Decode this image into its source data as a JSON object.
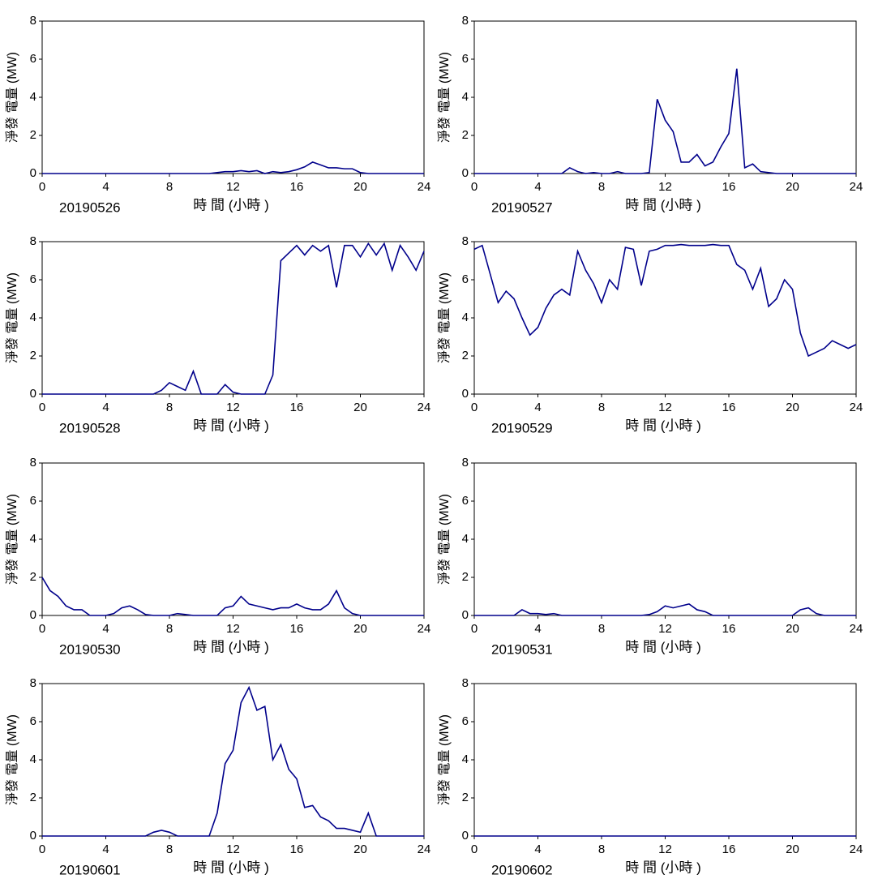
{
  "chart_data": [
    {
      "type": "line",
      "date_label": "20190526",
      "x_label": "時 間 (小時 )",
      "y_label": "淨發 電量 (MW)",
      "color": "#00008b",
      "xlim": [
        0,
        24
      ],
      "ylim": [
        0,
        8
      ],
      "xticks": [
        0,
        4,
        8,
        12,
        16,
        20,
        24
      ],
      "yticks": [
        0,
        2,
        4,
        6,
        8
      ],
      "x": [
        0,
        0.5,
        1,
        1.5,
        2,
        2.5,
        3,
        3.5,
        4,
        4.5,
        5,
        5.5,
        6,
        6.5,
        7,
        7.5,
        8,
        8.5,
        9,
        9.5,
        10,
        10.5,
        11,
        11.5,
        12,
        12.5,
        13,
        13.5,
        14,
        14.5,
        15,
        15.5,
        16,
        16.5,
        17,
        17.5,
        18,
        18.5,
        19,
        19.5,
        20,
        20.5,
        21,
        21.5,
        22,
        22.5,
        23,
        23.5,
        24
      ],
      "values": [
        0,
        0,
        0,
        0,
        0,
        0,
        0,
        0,
        0,
        0,
        0,
        0,
        0,
        0,
        0,
        0,
        0,
        0,
        0,
        0,
        0,
        0,
        0.05,
        0.1,
        0.1,
        0.15,
        0.1,
        0.15,
        0,
        0.1,
        0.05,
        0.1,
        0.2,
        0.35,
        0.6,
        0.45,
        0.3,
        0.3,
        0.25,
        0.25,
        0.05,
        0,
        0,
        0,
        0,
        0,
        0,
        0,
        0
      ]
    },
    {
      "type": "line",
      "date_label": "20190527",
      "x_label": "時 間 (小時 )",
      "y_label": "淨發 電量 (MW)",
      "color": "#00008b",
      "xlim": [
        0,
        24
      ],
      "ylim": [
        0,
        8
      ],
      "xticks": [
        0,
        4,
        8,
        12,
        16,
        20,
        24
      ],
      "yticks": [
        0,
        2,
        4,
        6,
        8
      ],
      "x": [
        0,
        0.5,
        1,
        1.5,
        2,
        2.5,
        3,
        3.5,
        4,
        4.5,
        5,
        5.5,
        6,
        6.5,
        7,
        7.5,
        8,
        8.5,
        9,
        9.5,
        10,
        10.5,
        11,
        11.5,
        12,
        12.5,
        13,
        13.5,
        14,
        14.5,
        15,
        15.5,
        16,
        16.5,
        17,
        17.5,
        18,
        18.5,
        19,
        19.5,
        20,
        20.5,
        21,
        21.5,
        22,
        22.5,
        23,
        23.5,
        24
      ],
      "values": [
        0,
        0,
        0,
        0,
        0,
        0,
        0,
        0,
        0,
        0,
        0,
        0,
        0.3,
        0.1,
        0,
        0.05,
        0,
        0,
        0.1,
        0,
        0,
        0,
        0.05,
        3.9,
        2.8,
        2.2,
        0.6,
        0.6,
        1.0,
        0.4,
        0.6,
        1.4,
        2.1,
        5.5,
        0.3,
        0.5,
        0.1,
        0.05,
        0,
        0,
        0,
        0,
        0,
        0,
        0,
        0,
        0,
        0,
        0
      ]
    },
    {
      "type": "line",
      "date_label": "20190528",
      "x_label": "時 間 (小時 )",
      "y_label": "淨發 電量 (MW)",
      "color": "#00008b",
      "xlim": [
        0,
        24
      ],
      "ylim": [
        0,
        8
      ],
      "xticks": [
        0,
        4,
        8,
        12,
        16,
        20,
        24
      ],
      "yticks": [
        0,
        2,
        4,
        6,
        8
      ],
      "x": [
        0,
        0.5,
        1,
        1.5,
        2,
        2.5,
        3,
        3.5,
        4,
        4.5,
        5,
        5.5,
        6,
        6.5,
        7,
        7.5,
        8,
        8.5,
        9,
        9.5,
        10,
        10.5,
        11,
        11.5,
        12,
        12.5,
        13,
        13.5,
        14,
        14.5,
        15,
        15.5,
        16,
        16.5,
        17,
        17.5,
        18,
        18.5,
        19,
        19.5,
        20,
        20.5,
        21,
        21.5,
        22,
        22.5,
        23,
        23.5,
        24
      ],
      "values": [
        0,
        0,
        0,
        0,
        0,
        0,
        0,
        0,
        0,
        0,
        0,
        0,
        0,
        0,
        0,
        0.2,
        0.6,
        0.4,
        0.2,
        1.2,
        0,
        0,
        0,
        0.5,
        0.1,
        0,
        0,
        0,
        0,
        1.0,
        7.0,
        7.4,
        7.8,
        7.3,
        7.8,
        7.5,
        7.8,
        5.6,
        7.8,
        7.8,
        7.2,
        7.9,
        7.3,
        7.9,
        6.5,
        7.8,
        7.2,
        6.5,
        7.5
      ]
    },
    {
      "type": "line",
      "date_label": "20190529",
      "x_label": "時 間 (小時 )",
      "y_label": "淨發 電量 (MW)",
      "color": "#00008b",
      "xlim": [
        0,
        24
      ],
      "ylim": [
        0,
        8
      ],
      "xticks": [
        0,
        4,
        8,
        12,
        16,
        20,
        24
      ],
      "yticks": [
        0,
        2,
        4,
        6,
        8
      ],
      "x": [
        0,
        0.5,
        1,
        1.5,
        2,
        2.5,
        3,
        3.5,
        4,
        4.5,
        5,
        5.5,
        6,
        6.5,
        7,
        7.5,
        8,
        8.5,
        9,
        9.5,
        10,
        10.5,
        11,
        11.5,
        12,
        12.5,
        13,
        13.5,
        14,
        14.5,
        15,
        15.5,
        16,
        16.5,
        17,
        17.5,
        18,
        18.5,
        19,
        19.5,
        20,
        20.5,
        21,
        21.5,
        22,
        22.5,
        23,
        23.5,
        24
      ],
      "values": [
        7.6,
        7.8,
        6.3,
        4.8,
        5.4,
        5.0,
        4.0,
        3.1,
        3.5,
        4.5,
        5.2,
        5.5,
        5.2,
        7.5,
        6.5,
        5.8,
        4.8,
        6.0,
        5.5,
        7.7,
        7.6,
        5.7,
        7.5,
        7.6,
        7.8,
        7.8,
        7.85,
        7.8,
        7.8,
        7.8,
        7.85,
        7.8,
        7.8,
        6.8,
        6.5,
        5.5,
        6.6,
        4.6,
        5.0,
        6.0,
        5.5,
        3.2,
        2.0,
        2.2,
        2.4,
        2.8,
        2.6,
        2.4,
        2.6
      ]
    },
    {
      "type": "line",
      "date_label": "20190530",
      "x_label": "時 間 (小時 )",
      "y_label": "淨發 電量 (MW)",
      "color": "#00008b",
      "xlim": [
        0,
        24
      ],
      "ylim": [
        0,
        8
      ],
      "xticks": [
        0,
        4,
        8,
        12,
        16,
        20,
        24
      ],
      "yticks": [
        0,
        2,
        4,
        6,
        8
      ],
      "x": [
        0,
        0.5,
        1,
        1.5,
        2,
        2.5,
        3,
        3.5,
        4,
        4.5,
        5,
        5.5,
        6,
        6.5,
        7,
        7.5,
        8,
        8.5,
        9,
        9.5,
        10,
        10.5,
        11,
        11.5,
        12,
        12.5,
        13,
        13.5,
        14,
        14.5,
        15,
        15.5,
        16,
        16.5,
        17,
        17.5,
        18,
        18.5,
        19,
        19.5,
        20,
        20.5,
        21,
        21.5,
        22,
        22.5,
        23,
        23.5,
        24
      ],
      "values": [
        2.0,
        1.3,
        1.0,
        0.5,
        0.3,
        0.3,
        0,
        0,
        0,
        0.1,
        0.4,
        0.5,
        0.3,
        0.05,
        0,
        0,
        0,
        0.1,
        0.05,
        0,
        0,
        0,
        0,
        0.4,
        0.5,
        1.0,
        0.6,
        0.5,
        0.4,
        0.3,
        0.4,
        0.4,
        0.6,
        0.4,
        0.3,
        0.3,
        0.6,
        1.3,
        0.4,
        0.1,
        0,
        0,
        0,
        0,
        0,
        0,
        0,
        0,
        0
      ]
    },
    {
      "type": "line",
      "date_label": "20190531",
      "x_label": "時 間 (小時 )",
      "y_label": "淨發 電量 (MW)",
      "color": "#00008b",
      "xlim": [
        0,
        24
      ],
      "ylim": [
        0,
        8
      ],
      "xticks": [
        0,
        4,
        8,
        12,
        16,
        20,
        24
      ],
      "yticks": [
        0,
        2,
        4,
        6,
        8
      ],
      "x": [
        0,
        0.5,
        1,
        1.5,
        2,
        2.5,
        3,
        3.5,
        4,
        4.5,
        5,
        5.5,
        6,
        6.5,
        7,
        7.5,
        8,
        8.5,
        9,
        9.5,
        10,
        10.5,
        11,
        11.5,
        12,
        12.5,
        13,
        13.5,
        14,
        14.5,
        15,
        15.5,
        16,
        16.5,
        17,
        17.5,
        18,
        18.5,
        19,
        19.5,
        20,
        20.5,
        21,
        21.5,
        22,
        22.5,
        23,
        23.5,
        24
      ],
      "values": [
        0,
        0,
        0,
        0,
        0,
        0,
        0.3,
        0.1,
        0.1,
        0.05,
        0.1,
        0,
        0,
        0,
        0,
        0,
        0,
        0,
        0,
        0,
        0,
        0,
        0.05,
        0.2,
        0.5,
        0.4,
        0.5,
        0.6,
        0.3,
        0.2,
        0,
        0,
        0,
        0,
        0,
        0,
        0,
        0,
        0,
        0,
        0,
        0.3,
        0.4,
        0.1,
        0,
        0,
        0,
        0,
        0
      ]
    },
    {
      "type": "line",
      "date_label": "20190601",
      "x_label": "時 間 (小時 )",
      "y_label": "淨發 電量 (MW)",
      "color": "#00008b",
      "xlim": [
        0,
        24
      ],
      "ylim": [
        0,
        8
      ],
      "xticks": [
        0,
        4,
        8,
        12,
        16,
        20,
        24
      ],
      "yticks": [
        0,
        2,
        4,
        6,
        8
      ],
      "x": [
        0,
        0.5,
        1,
        1.5,
        2,
        2.5,
        3,
        3.5,
        4,
        4.5,
        5,
        5.5,
        6,
        6.5,
        7,
        7.5,
        8,
        8.5,
        9,
        9.5,
        10,
        10.5,
        11,
        11.5,
        12,
        12.5,
        13,
        13.5,
        14,
        14.5,
        15,
        15.5,
        16,
        16.5,
        17,
        17.5,
        18,
        18.5,
        19,
        19.5,
        20,
        20.5,
        21,
        21.5,
        22,
        22.5,
        23,
        23.5,
        24
      ],
      "values": [
        0,
        0,
        0,
        0,
        0,
        0,
        0,
        0,
        0,
        0,
        0,
        0,
        0,
        0,
        0.2,
        0.3,
        0.2,
        0,
        0,
        0,
        0,
        0,
        1.2,
        3.8,
        4.5,
        7.0,
        7.8,
        6.6,
        6.8,
        4.0,
        4.8,
        3.5,
        3.0,
        1.5,
        1.6,
        1.0,
        0.8,
        0.4,
        0.4,
        0.3,
        0.2,
        1.2,
        0,
        0,
        0,
        0,
        0,
        0,
        0
      ]
    },
    {
      "type": "line",
      "date_label": "20190602",
      "x_label": "時 間 (小時 )",
      "y_label": "淨發 電量 (MW)",
      "color": "#00008b",
      "xlim": [
        0,
        24
      ],
      "ylim": [
        0,
        8
      ],
      "xticks": [
        0,
        4,
        8,
        12,
        16,
        20,
        24
      ],
      "yticks": [
        0,
        2,
        4,
        6,
        8
      ],
      "x": [
        0,
        0.5,
        1,
        1.5,
        2,
        2.5,
        3,
        3.5,
        4,
        4.5,
        5,
        5.5,
        6,
        6.5,
        7,
        7.5,
        8,
        8.5,
        9,
        9.5,
        10,
        10.5,
        11,
        11.5,
        12,
        12.5,
        13,
        13.5,
        14,
        14.5,
        15,
        15.5,
        16,
        16.5,
        17,
        17.5,
        18,
        18.5,
        19,
        19.5,
        20,
        20.5,
        21,
        21.5,
        22,
        22.5,
        23,
        23.5,
        24
      ],
      "values": [
        0,
        0,
        0,
        0,
        0,
        0,
        0,
        0,
        0,
        0,
        0,
        0,
        0,
        0,
        0,
        0,
        0,
        0,
        0,
        0,
        0,
        0,
        0,
        0,
        0,
        0,
        0,
        0,
        0,
        0,
        0,
        0,
        0,
        0,
        0,
        0,
        0,
        0,
        0,
        0,
        0,
        0,
        0,
        0,
        0,
        0,
        0,
        0,
        0
      ]
    }
  ]
}
